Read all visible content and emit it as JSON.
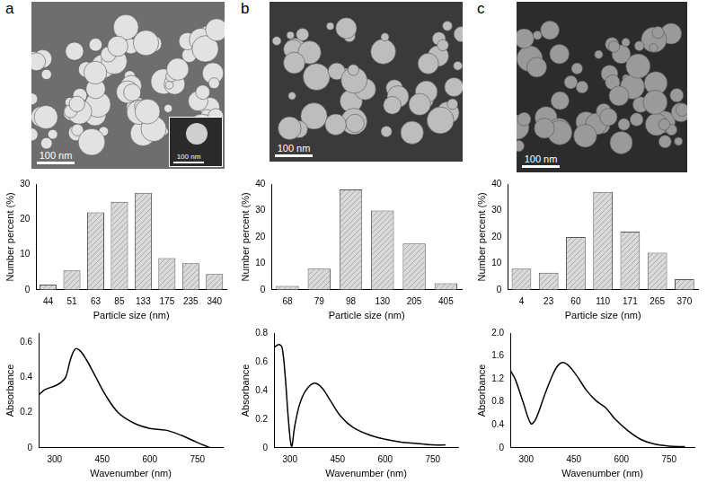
{
  "panels": [
    {
      "label": "a",
      "image": {
        "scale_bar": "100 nm",
        "inset_scale_bar": "100 nm"
      }
    },
    {
      "label": "b",
      "image": {
        "scale_bar": "100 nm"
      }
    },
    {
      "label": "c",
      "image": {
        "scale_bar": "100 nm"
      }
    }
  ],
  "chart_data": [
    {
      "type": "bar",
      "panel": "a",
      "x_label": "Particle size (nm)",
      "y_label": "Number percent (%)",
      "categories": [
        "44",
        "51",
        "63",
        "85",
        "133",
        "175",
        "235",
        "340"
      ],
      "values": [
        1.5,
        5.5,
        22,
        25,
        27.5,
        9,
        7.5,
        4.5
      ],
      "color": "#d9d9d9",
      "ylim": [
        0,
        30
      ],
      "yticks": [
        0,
        10,
        20,
        30
      ],
      "grid": false
    },
    {
      "type": "bar",
      "panel": "b",
      "x_label": "Particle size (nm)",
      "y_label": "Number percent (%)",
      "categories": [
        "68",
        "79",
        "98",
        "130",
        "205",
        "405"
      ],
      "values": [
        1.5,
        8,
        38,
        30,
        17.5,
        2.5
      ],
      "color": "#d9d9d9",
      "ylim": [
        0,
        40
      ],
      "yticks": [
        0,
        10,
        20,
        30,
        40
      ],
      "grid": false
    },
    {
      "type": "bar",
      "panel": "c",
      "x_label": "Particle size (nm)",
      "y_label": "Number percent (%)",
      "categories": [
        "4",
        "23",
        "60",
        "110",
        "171",
        "265",
        "370"
      ],
      "values": [
        8,
        6.5,
        20,
        37,
        22,
        14,
        4
      ],
      "color": "#d9d9d9",
      "ylim": [
        0,
        40
      ],
      "yticks": [
        0,
        10,
        20,
        30,
        40
      ],
      "grid": false
    },
    {
      "type": "line",
      "panel": "a",
      "x_label": "Wavenumber (nm)",
      "y_label": "Absorbance",
      "x": [
        250,
        270,
        300,
        320,
        335,
        350,
        365,
        380,
        400,
        430,
        460,
        500,
        550,
        600,
        650,
        700,
        750,
        790
      ],
      "values": [
        0.3,
        0.33,
        0.35,
        0.37,
        0.4,
        0.5,
        0.56,
        0.55,
        0.5,
        0.4,
        0.3,
        0.2,
        0.14,
        0.11,
        0.1,
        0.07,
        0.03,
        0.0
      ],
      "color": "#000000",
      "xlim": [
        250,
        830
      ],
      "xticks": [
        300,
        450,
        600,
        750
      ],
      "ylim": [
        0,
        0.65
      ],
      "yticks": [
        0,
        0.2,
        0.4,
        0.6
      ],
      "grid": false
    },
    {
      "type": "line",
      "panel": "b",
      "x_label": "Wavenumber (nm)",
      "y_label": "Absorbance",
      "x": [
        250,
        265,
        275,
        285,
        295,
        305,
        315,
        330,
        350,
        375,
        400,
        430,
        460,
        500,
        550,
        600,
        650,
        700,
        750,
        790
      ],
      "values": [
        0.7,
        0.72,
        0.7,
        0.5,
        0.2,
        0.01,
        0.15,
        0.3,
        0.4,
        0.45,
        0.42,
        0.32,
        0.22,
        0.14,
        0.09,
        0.06,
        0.04,
        0.03,
        0.02,
        0.02
      ],
      "color": "#000000",
      "xlim": [
        250,
        830
      ],
      "xticks": [
        300,
        450,
        600,
        750
      ],
      "ylim": [
        0,
        0.8
      ],
      "yticks": [
        0,
        0.2,
        0.4,
        0.6,
        0.8
      ],
      "grid": false
    },
    {
      "type": "line",
      "panel": "c",
      "x_label": "Wavenumber (nm)",
      "y_label": "Absorbance",
      "x": [
        250,
        265,
        290,
        315,
        330,
        360,
        390,
        410,
        430,
        460,
        490,
        520,
        550,
        580,
        620,
        660,
        700,
        750,
        800
      ],
      "values": [
        1.35,
        1.2,
        0.8,
        0.42,
        0.5,
        0.95,
        1.35,
        1.48,
        1.45,
        1.25,
        1.0,
        0.82,
        0.7,
        0.5,
        0.3,
        0.15,
        0.07,
        0.03,
        0.02
      ],
      "color": "#000000",
      "xlim": [
        250,
        830
      ],
      "xticks": [
        300,
        450,
        600,
        750
      ],
      "ylim": [
        0,
        2
      ],
      "yticks": [
        0,
        0.4,
        0.8,
        1.2,
        1.6,
        {
          "value": 2,
          "label": "2.0"
        }
      ],
      "grid": false
    }
  ]
}
